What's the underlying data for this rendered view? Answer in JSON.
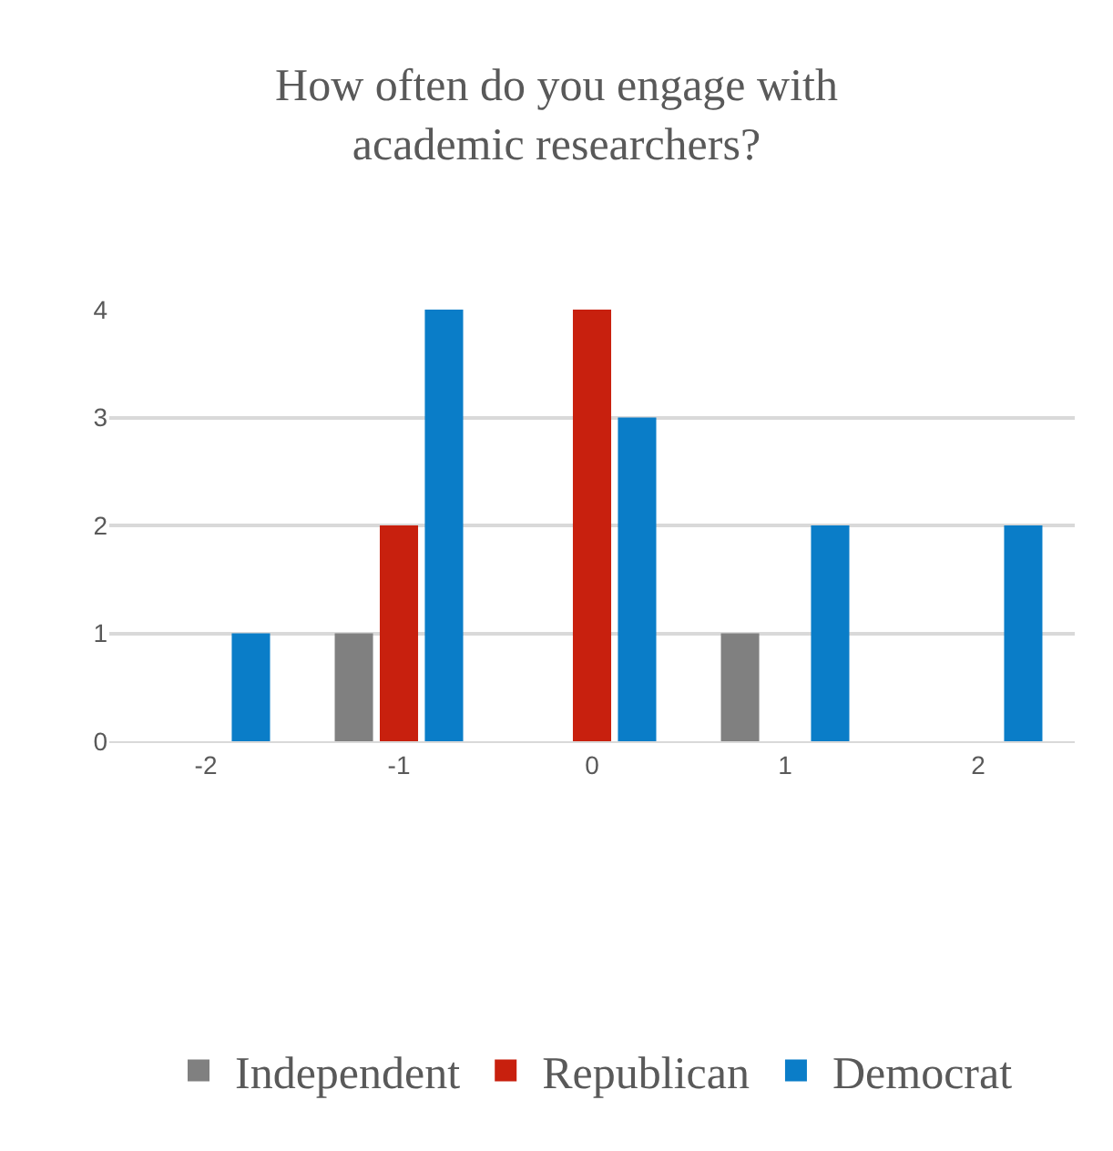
{
  "chart_data": {
    "type": "bar",
    "title": "How often do you engage with academic researchers?",
    "categories": [
      "-2",
      "-1",
      "0",
      "1",
      "2"
    ],
    "series": [
      {
        "name": "Independent",
        "color": "#808080",
        "values": [
          0,
          1,
          0,
          1,
          0
        ]
      },
      {
        "name": "Republican",
        "color": "#c8200e",
        "values": [
          0,
          2,
          4,
          0,
          0
        ]
      },
      {
        "name": "Democrat",
        "color": "#0a7dc8",
        "values": [
          1,
          4,
          3,
          2,
          2
        ]
      }
    ],
    "ylim": [
      0,
      4
    ],
    "yticks": [
      0,
      1,
      2,
      3,
      4
    ],
    "grid": "y",
    "legend": "bottom"
  }
}
